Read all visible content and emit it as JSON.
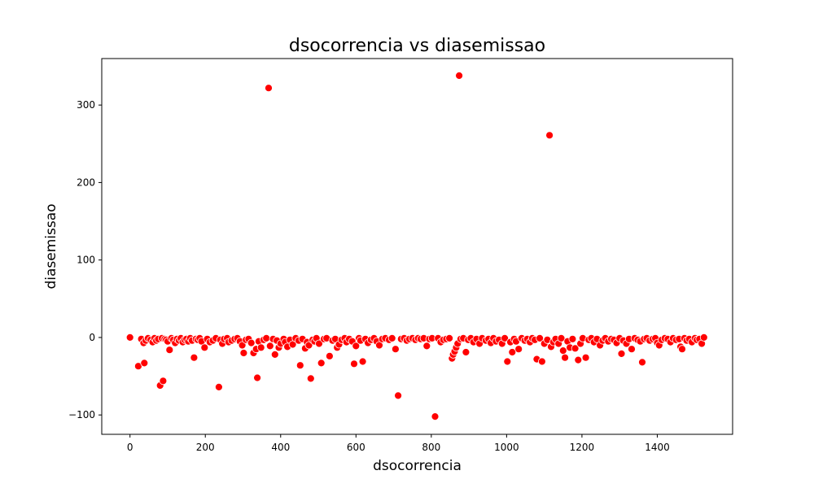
{
  "chart_data": {
    "type": "scatter",
    "title": "dsocorrencia vs diasemissao",
    "xlabel": "dsocorrencia",
    "ylabel": "diasemissao",
    "xlim": [
      -75,
      1600
    ],
    "ylim": [
      -125,
      360
    ],
    "xticks": [
      0,
      200,
      400,
      600,
      800,
      1000,
      1200,
      1400
    ],
    "yticks": [
      -100,
      0,
      100,
      200,
      300
    ],
    "grid": false,
    "legend": "none",
    "marker_color": "#ff0000",
    "marker_edge_color": "#ffffff",
    "points": [
      [
        0,
        0
      ],
      [
        22,
        -37
      ],
      [
        30,
        -2
      ],
      [
        36,
        -7
      ],
      [
        38,
        -33
      ],
      [
        42,
        -4
      ],
      [
        48,
        -1
      ],
      [
        55,
        -3
      ],
      [
        60,
        -6
      ],
      [
        65,
        -1
      ],
      [
        70,
        -4
      ],
      [
        75,
        -2
      ],
      [
        80,
        -62
      ],
      [
        85,
        -1
      ],
      [
        88,
        -56
      ],
      [
        92,
        -2
      ],
      [
        96,
        -3
      ],
      [
        100,
        -5
      ],
      [
        105,
        -16
      ],
      [
        110,
        -1
      ],
      [
        115,
        -3
      ],
      [
        120,
        -7
      ],
      [
        125,
        -2
      ],
      [
        130,
        -4
      ],
      [
        135,
        -1
      ],
      [
        140,
        -6
      ],
      [
        145,
        -3
      ],
      [
        150,
        -2
      ],
      [
        155,
        -5
      ],
      [
        160,
        -1
      ],
      [
        165,
        -4
      ],
      [
        170,
        -26
      ],
      [
        175,
        -2
      ],
      [
        180,
        -3
      ],
      [
        185,
        -1
      ],
      [
        190,
        -5
      ],
      [
        198,
        -13
      ],
      [
        205,
        -2
      ],
      [
        212,
        -6
      ],
      [
        220,
        -4
      ],
      [
        228,
        -1
      ],
      [
        236,
        -64
      ],
      [
        240,
        -3
      ],
      [
        245,
        -8
      ],
      [
        250,
        -2
      ],
      [
        258,
        -1
      ],
      [
        262,
        -6
      ],
      [
        270,
        -4
      ],
      [
        278,
        -2
      ],
      [
        285,
        -1
      ],
      [
        292,
        -5
      ],
      [
        298,
        -10
      ],
      [
        302,
        -20
      ],
      [
        308,
        -3
      ],
      [
        315,
        -2
      ],
      [
        322,
        -7
      ],
      [
        328,
        -20
      ],
      [
        335,
        -15
      ],
      [
        338,
        -52
      ],
      [
        342,
        -5
      ],
      [
        348,
        -13
      ],
      [
        355,
        -3
      ],
      [
        362,
        -1
      ],
      [
        368,
        322
      ],
      [
        372,
        -11
      ],
      [
        380,
        -2
      ],
      [
        385,
        -22
      ],
      [
        390,
        -4
      ],
      [
        395,
        -13
      ],
      [
        400,
        -8
      ],
      [
        408,
        -2
      ],
      [
        412,
        -6
      ],
      [
        418,
        -12
      ],
      [
        425,
        -3
      ],
      [
        432,
        -9
      ],
      [
        440,
        -1
      ],
      [
        448,
        -4
      ],
      [
        452,
        -36
      ],
      [
        458,
        -2
      ],
      [
        465,
        -14
      ],
      [
        470,
        -6
      ],
      [
        475,
        -10
      ],
      [
        480,
        -53
      ],
      [
        485,
        -3
      ],
      [
        490,
        -5
      ],
      [
        495,
        -1
      ],
      [
        502,
        -8
      ],
      [
        508,
        -33
      ],
      [
        515,
        -2
      ],
      [
        522,
        -1
      ],
      [
        530,
        -24
      ],
      [
        538,
        -4
      ],
      [
        545,
        -2
      ],
      [
        550,
        -13
      ],
      [
        555,
        -9
      ],
      [
        562,
        -3
      ],
      [
        570,
        -1
      ],
      [
        575,
        -6
      ],
      [
        582,
        -2
      ],
      [
        590,
        -5
      ],
      [
        595,
        -34
      ],
      [
        600,
        -11
      ],
      [
        608,
        -1
      ],
      [
        612,
        -4
      ],
      [
        618,
        -31
      ],
      [
        625,
        -2
      ],
      [
        632,
        -7
      ],
      [
        640,
        -3
      ],
      [
        648,
        -1
      ],
      [
        655,
        -5
      ],
      [
        662,
        -10
      ],
      [
        670,
        -2
      ],
      [
        678,
        -1
      ],
      [
        688,
        -3
      ],
      [
        696,
        -1
      ],
      [
        705,
        -15
      ],
      [
        712,
        -75
      ],
      [
        720,
        -2
      ],
      [
        728,
        -1
      ],
      [
        735,
        -4
      ],
      [
        742,
        -2
      ],
      [
        750,
        -1
      ],
      [
        758,
        -3
      ],
      [
        765,
        -1
      ],
      [
        772,
        -2
      ],
      [
        780,
        -1
      ],
      [
        788,
        -11
      ],
      [
        795,
        -2
      ],
      [
        802,
        -1
      ],
      [
        810,
        -102
      ],
      [
        818,
        -1
      ],
      [
        825,
        -6
      ],
      [
        832,
        -3
      ],
      [
        840,
        -2
      ],
      [
        848,
        -1
      ],
      [
        855,
        -27
      ],
      [
        858,
        -22
      ],
      [
        862,
        -18
      ],
      [
        866,
        -13
      ],
      [
        870,
        -8
      ],
      [
        874,
        338
      ],
      [
        878,
        -2
      ],
      [
        885,
        -1
      ],
      [
        892,
        -19
      ],
      [
        898,
        -3
      ],
      [
        905,
        -1
      ],
      [
        912,
        -6
      ],
      [
        920,
        -2
      ],
      [
        928,
        -8
      ],
      [
        935,
        -1
      ],
      [
        945,
        -4
      ],
      [
        952,
        -2
      ],
      [
        958,
        -7
      ],
      [
        965,
        -1
      ],
      [
        972,
        -5
      ],
      [
        980,
        -3
      ],
      [
        988,
        -8
      ],
      [
        995,
        -1
      ],
      [
        1002,
        -31
      ],
      [
        1010,
        -6
      ],
      [
        1015,
        -19
      ],
      [
        1020,
        -2
      ],
      [
        1025,
        -5
      ],
      [
        1032,
        -15
      ],
      [
        1040,
        -1
      ],
      [
        1048,
        -4
      ],
      [
        1055,
        -2
      ],
      [
        1062,
        -6
      ],
      [
        1068,
        -1
      ],
      [
        1075,
        -3
      ],
      [
        1080,
        -28
      ],
      [
        1088,
        -1
      ],
      [
        1094,
        -31
      ],
      [
        1100,
        -8
      ],
      [
        1108,
        -3
      ],
      [
        1114,
        261
      ],
      [
        1118,
        -12
      ],
      [
        1124,
        -6
      ],
      [
        1130,
        -2
      ],
      [
        1138,
        -8
      ],
      [
        1145,
        -1
      ],
      [
        1150,
        -17
      ],
      [
        1155,
        -26
      ],
      [
        1162,
        -5
      ],
      [
        1168,
        -13
      ],
      [
        1175,
        -2
      ],
      [
        1182,
        -14
      ],
      [
        1190,
        -29
      ],
      [
        1196,
        -8
      ],
      [
        1202,
        -1
      ],
      [
        1210,
        -26
      ],
      [
        1218,
        -3
      ],
      [
        1225,
        -1
      ],
      [
        1232,
        -6
      ],
      [
        1240,
        -2
      ],
      [
        1248,
        -10
      ],
      [
        1255,
        -4
      ],
      [
        1262,
        -1
      ],
      [
        1270,
        -5
      ],
      [
        1278,
        -2
      ],
      [
        1285,
        -3
      ],
      [
        1292,
        -7
      ],
      [
        1300,
        -1
      ],
      [
        1305,
        -21
      ],
      [
        1310,
        -4
      ],
      [
        1318,
        -8
      ],
      [
        1325,
        -2
      ],
      [
        1332,
        -15
      ],
      [
        1340,
        -1
      ],
      [
        1348,
        -3
      ],
      [
        1355,
        -5
      ],
      [
        1360,
        -32
      ],
      [
        1365,
        -2
      ],
      [
        1372,
        -1
      ],
      [
        1380,
        -4
      ],
      [
        1388,
        -2
      ],
      [
        1395,
        -1
      ],
      [
        1400,
        -7
      ],
      [
        1405,
        -10
      ],
      [
        1412,
        -3
      ],
      [
        1420,
        -1
      ],
      [
        1428,
        -2
      ],
      [
        1435,
        -6
      ],
      [
        1442,
        -1
      ],
      [
        1450,
        -3
      ],
      [
        1458,
        -2
      ],
      [
        1462,
        -12
      ],
      [
        1466,
        -15
      ],
      [
        1472,
        -1
      ],
      [
        1478,
        -4
      ],
      [
        1485,
        -2
      ],
      [
        1492,
        -6
      ],
      [
        1500,
        -1
      ],
      [
        1505,
        -3
      ],
      [
        1512,
        -2
      ],
      [
        1518,
        -8
      ],
      [
        1524,
        0
      ]
    ]
  }
}
